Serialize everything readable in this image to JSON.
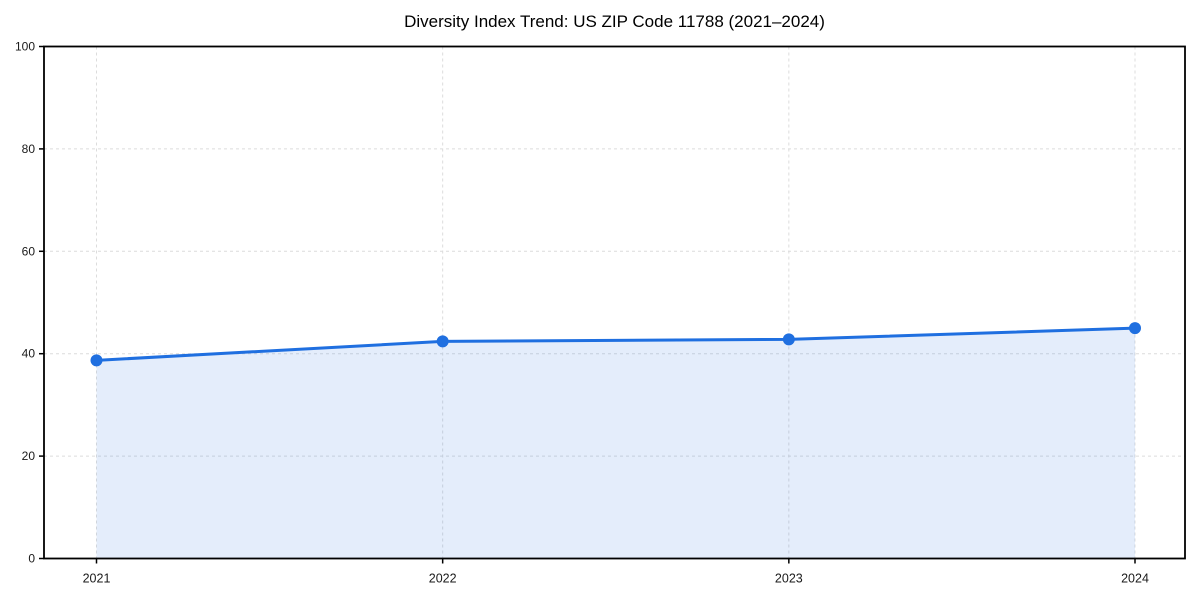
{
  "chart_data": {
    "type": "area",
    "title": "Diversity Index Trend: US ZIP Code 11788 (2021–2024)",
    "categories": [
      "2021",
      "2022",
      "2023",
      "2024"
    ],
    "series": [
      {
        "name": "Diversity Index",
        "values": [
          38.7,
          42.4,
          42.8,
          45.0
        ]
      }
    ],
    "xlabel": "",
    "ylabel": "",
    "ylim": [
      0,
      100
    ],
    "yticks": [
      0,
      20,
      40,
      60,
      80,
      100
    ],
    "grid": true,
    "grid_style": "dashed",
    "legend_position": "none",
    "colors": {
      "line": "#1f6fe0",
      "marker": "#1f6fe0",
      "fill": "#1f6fe0",
      "fill_opacity": 0.12,
      "gridline": "#dcdcdc",
      "axis": "#000000",
      "tick_label": "#1a1a1a",
      "title": "#000000",
      "background": "#ffffff"
    }
  }
}
